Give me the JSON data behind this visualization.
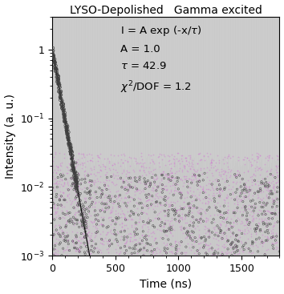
{
  "title_left": "LYSO-Depolished",
  "title_right": "Gamma excited",
  "xlabel": "Time (ns)",
  "ylabel": "Intensity (a. u.)",
  "A": 1.0,
  "tau": 42.9,
  "chi2_dof": 1.2,
  "x_min": 0,
  "x_max": 1800,
  "y_min": 0.001,
  "y_max": 3.0,
  "bg_color": "#ffffff",
  "noise_band_color": "#c8c8c8",
  "fit_color": "#000000",
  "dot_color": "#404040",
  "pink_dot_color": "#d080d0",
  "title_fontsize": 10,
  "label_fontsize": 10,
  "annotation_fontsize": 9.5,
  "tick_labelsize": 9
}
